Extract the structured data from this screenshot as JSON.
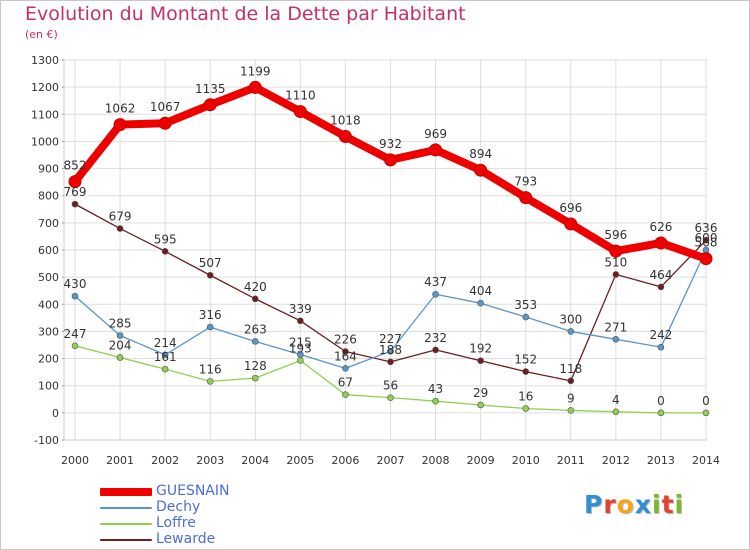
{
  "header": {
    "title": "Evolution du Montant de la Dette par Habitant",
    "unit": "(en €)"
  },
  "colors": {
    "title": "#c4306e",
    "legend_text": "#4a6fd8",
    "grid": "#dddddd",
    "axis_text": "#333333"
  },
  "brand": {
    "text": "Proxiti",
    "letter_colors": [
      "#2f8fd0",
      "#e5412f",
      "#f4a51c",
      "#2f8fd0",
      "#7ab829",
      "#e5412f",
      "#7ab829"
    ]
  },
  "chart_data": {
    "type": "line",
    "title": "Evolution du Montant de la Dette par Habitant",
    "ylabel": "(en €)",
    "xlabel": "",
    "x": [
      "2000",
      "2001",
      "2002",
      "2003",
      "2004",
      "2005",
      "2006",
      "2007",
      "2008",
      "2009",
      "2010",
      "2011",
      "2012",
      "2013",
      "2014"
    ],
    "ylim": [
      -100,
      1300
    ],
    "yticks": [
      -100,
      0,
      100,
      200,
      300,
      400,
      500,
      600,
      700,
      800,
      900,
      1000,
      1100,
      1200,
      1300
    ],
    "grid": true,
    "legend_position": "bottom-left",
    "series": [
      {
        "name": "GUESNAIN",
        "color": "#ee0000",
        "values": [
          852,
          1062,
          1067,
          1135,
          1199,
          1110,
          1018,
          932,
          969,
          894,
          793,
          696,
          596,
          626,
          568
        ],
        "labels": [
          "852",
          "1062",
          "1067",
          "1135",
          "1199",
          "1110",
          "1018",
          "932",
          "969",
          "894",
          "793",
          "696",
          "596",
          "626",
          "568"
        ]
      },
      {
        "name": "Dechy",
        "color": "#5a95c8",
        "values": [
          430,
          285,
          214,
          316,
          263,
          215,
          164,
          227,
          437,
          404,
          353,
          300,
          271,
          242,
          600
        ],
        "labels": [
          "430",
          "285",
          "214",
          "316",
          "263",
          "215",
          "164",
          "227",
          "437",
          "404",
          "353",
          "300",
          "271",
          "242",
          "600"
        ]
      },
      {
        "name": "Loffre",
        "color": "#8fd14f",
        "values": [
          247,
          204,
          161,
          116,
          128,
          193,
          67,
          56,
          43,
          29,
          16,
          9,
          4,
          0,
          0
        ],
        "labels": [
          "247",
          "204",
          "161",
          "116",
          "128",
          "193",
          "67",
          "56",
          "43",
          "29",
          "16",
          "9",
          "4",
          "0",
          "0"
        ]
      },
      {
        "name": "Lewarde",
        "color": "#6e1e1e",
        "values": [
          769,
          679,
          595,
          507,
          420,
          339,
          226,
          188,
          232,
          192,
          152,
          118,
          510,
          464,
          636
        ],
        "labels": [
          "769",
          "679",
          "595",
          "507",
          "420",
          "339",
          "226",
          "188",
          "232",
          "192",
          "152",
          "118",
          "510",
          "464",
          "636"
        ]
      }
    ]
  }
}
